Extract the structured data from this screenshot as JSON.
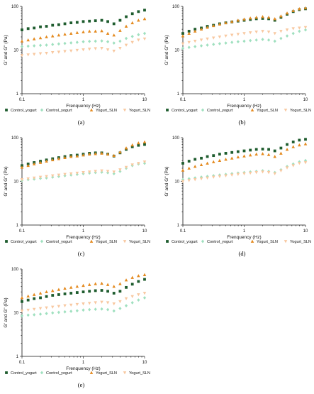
{
  "series_style": [
    {
      "marker": "square",
      "color": "#1e5c2e"
    },
    {
      "marker": "diamond",
      "color": "#9fe0bf"
    },
    {
      "marker": "triangle",
      "color": "#e48a1f"
    },
    {
      "marker": "triangle-down",
      "color": "#f8c8a0"
    }
  ],
  "chart_data": [
    {
      "type": "scatter",
      "panel_label": "(a)",
      "xlabel": "Frenquency (Hz)",
      "ylabel": "G' and G\" (Pa)",
      "xscale": "log",
      "yscale": "log",
      "xlim": [
        0.1,
        10
      ],
      "ylim": [
        1,
        100
      ],
      "xticks": [
        "0.1",
        "1",
        "10"
      ],
      "yticks": [
        "1",
        "10",
        "100"
      ],
      "legend_position": "bottom",
      "grid": false,
      "x": [
        0.1,
        0.126,
        0.158,
        0.2,
        0.251,
        0.316,
        0.398,
        0.501,
        0.631,
        0.794,
        1,
        1.26,
        1.58,
        2,
        2.51,
        3.16,
        3.98,
        5.01,
        6.31,
        7.94,
        10
      ],
      "series": [
        {
          "name": "Control_yogurt",
          "values": [
            29,
            31,
            32,
            34,
            35,
            37,
            38,
            40,
            42,
            43,
            45,
            46,
            47,
            48,
            45,
            40,
            48,
            58,
            68,
            76,
            82
          ]
        },
        {
          "name": "Control_yogurt",
          "values": [
            12,
            12.3,
            12.5,
            12.8,
            13,
            13.4,
            13.8,
            14.2,
            14.6,
            15,
            15.5,
            15.8,
            16,
            16.2,
            15.5,
            14.5,
            16,
            18.5,
            20.5,
            22.5,
            24
          ]
        },
        {
          "name": "Yogurt_SLN",
          "values": [
            16,
            17,
            18,
            19,
            20,
            21,
            22,
            23,
            24,
            25,
            26,
            27,
            27,
            27.5,
            24,
            22,
            28,
            35,
            42,
            48,
            52
          ]
        },
        {
          "name": "Yogurt_SLN",
          "values": [
            7.5,
            7.8,
            8,
            8.3,
            8.5,
            8.8,
            9,
            9.3,
            9.6,
            9.9,
            10.2,
            10.5,
            10.8,
            11,
            10.2,
            9.5,
            11,
            13,
            15,
            17,
            18
          ]
        }
      ]
    },
    {
      "type": "scatter",
      "panel_label": "(b)",
      "xlabel": "Frenquency (Hz)",
      "ylabel": "G' and G\" (Pa)",
      "xscale": "log",
      "yscale": "log",
      "xlim": [
        0.1,
        10
      ],
      "ylim": [
        1,
        100
      ],
      "xticks": [
        "0.1",
        "1",
        "10"
      ],
      "yticks": [
        "1",
        "10",
        "100"
      ],
      "legend_position": "bottom",
      "grid": false,
      "x": [
        0.1,
        0.126,
        0.158,
        0.2,
        0.251,
        0.316,
        0.398,
        0.501,
        0.631,
        0.794,
        1,
        1.26,
        1.58,
        2,
        2.51,
        3.16,
        3.98,
        5.01,
        6.31,
        7.94,
        10
      ],
      "series": [
        {
          "name": "Control_yogurt",
          "values": [
            24,
            27,
            30,
            32,
            35,
            37,
            40,
            42,
            44,
            46,
            48,
            50,
            52,
            53,
            52,
            48,
            56,
            66,
            76,
            84,
            88
          ]
        },
        {
          "name": "Control_yogurt",
          "values": [
            11,
            11.5,
            12,
            12.5,
            13,
            13.5,
            14,
            14.5,
            15,
            15.5,
            16,
            16.5,
            17,
            17.5,
            17,
            16,
            18.5,
            21,
            24,
            27,
            29
          ]
        },
        {
          "name": "Yogurt_SLN",
          "values": [
            21,
            24,
            27,
            30,
            33,
            36,
            39,
            42,
            45,
            48,
            51,
            54,
            56,
            58,
            56,
            52,
            60,
            70,
            80,
            88,
            92
          ]
        },
        {
          "name": "Yogurt_SLN",
          "values": [
            14,
            15,
            16,
            17,
            18,
            19,
            20,
            21,
            22,
            23,
            24,
            25,
            26,
            27,
            26,
            24,
            27,
            29,
            31,
            32,
            33
          ]
        }
      ]
    },
    {
      "type": "scatter",
      "panel_label": "(c)",
      "xlabel": "Frenquency (Hz)",
      "ylabel": "G' and G\" (Pa)",
      "xscale": "log",
      "yscale": "log",
      "xlim": [
        0.1,
        10
      ],
      "ylim": [
        1,
        100
      ],
      "xticks": [
        "0.1",
        "1",
        "10"
      ],
      "yticks": [
        "1",
        "10",
        "100"
      ],
      "legend_position": "bottom",
      "grid": false,
      "x": [
        0.1,
        0.126,
        0.158,
        0.2,
        0.251,
        0.316,
        0.398,
        0.501,
        0.631,
        0.794,
        1,
        1.26,
        1.58,
        2,
        2.51,
        3.16,
        3.98,
        5.01,
        6.31,
        7.94,
        10
      ],
      "series": [
        {
          "name": "Control_yogurt",
          "values": [
            23,
            25,
            27,
            29,
            31,
            33,
            35,
            37,
            39,
            40,
            42,
            44,
            45,
            45,
            42,
            38,
            45,
            54,
            62,
            67,
            70
          ]
        },
        {
          "name": "Control_yogurt",
          "values": [
            10.5,
            11,
            11.3,
            11.7,
            12,
            12.5,
            13,
            13.5,
            14,
            14.5,
            15,
            15.5,
            16,
            16.3,
            15.8,
            15,
            17,
            20,
            23,
            25,
            26
          ]
        },
        {
          "name": "Yogurt_SLN",
          "values": [
            21,
            23,
            25,
            27,
            29,
            31,
            33,
            35,
            37,
            38,
            40,
            42,
            43,
            44,
            42,
            39,
            47,
            58,
            68,
            76,
            80
          ]
        },
        {
          "name": "Yogurt_SLN",
          "values": [
            11,
            11.5,
            12,
            12.5,
            13,
            13.5,
            14,
            14.5,
            15,
            15.5,
            16,
            16.5,
            17,
            17.5,
            17,
            16.5,
            18.5,
            21,
            24,
            26,
            28
          ]
        }
      ]
    },
    {
      "type": "scatter",
      "panel_label": "(d)",
      "xlabel": "Frenquency (Hz)",
      "ylabel": "G' and G\" (Pa)",
      "xscale": "log",
      "yscale": "log",
      "xlim": [
        0.1,
        10
      ],
      "ylim": [
        1,
        100
      ],
      "xticks": [
        "0.1",
        "1",
        "10"
      ],
      "yticks": [
        "1",
        "10",
        "100"
      ],
      "legend_position": "bottom",
      "grid": false,
      "x": [
        0.1,
        0.126,
        0.158,
        0.2,
        0.251,
        0.316,
        0.398,
        0.501,
        0.631,
        0.794,
        1,
        1.26,
        1.58,
        2,
        2.51,
        3.16,
        3.98,
        5.01,
        6.31,
        7.94,
        10
      ],
      "series": [
        {
          "name": "Control_yogurt",
          "values": [
            26,
            29,
            32,
            34,
            37,
            39,
            42,
            44,
            46,
            48,
            50,
            52,
            54,
            55,
            54,
            50,
            58,
            70,
            80,
            88,
            92
          ]
        },
        {
          "name": "Control_yogurt",
          "values": [
            11,
            11.5,
            12,
            12.5,
            13,
            13.5,
            14,
            14.5,
            15,
            15.5,
            16,
            16.5,
            17,
            17.5,
            17,
            16,
            18.5,
            22,
            25,
            28,
            30
          ]
        },
        {
          "name": "Yogurt_SLN",
          "values": [
            18,
            20,
            22,
            24,
            26,
            28,
            30,
            32,
            34,
            36,
            38,
            40,
            42,
            43,
            41,
            37,
            44,
            54,
            62,
            68,
            72
          ]
        },
        {
          "name": "Yogurt_SLN",
          "values": [
            10,
            10.5,
            11,
            11.5,
            12,
            12.5,
            13,
            13.5,
            14,
            14.5,
            15,
            15.5,
            16,
            16.5,
            16,
            15,
            17.5,
            20.5,
            23,
            26,
            27
          ]
        }
      ]
    },
    {
      "type": "scatter",
      "panel_label": "(e)",
      "xlabel": "Frenquency (Hz)",
      "ylabel": "G' and G\" (Pa)",
      "xscale": "log",
      "yscale": "log",
      "xlim": [
        0.1,
        10
      ],
      "ylim": [
        1,
        100
      ],
      "xticks": [
        "0.1",
        "1",
        "10"
      ],
      "yticks": [
        "1",
        "10",
        "100"
      ],
      "legend_position": "bottom",
      "grid": false,
      "x": [
        0.1,
        0.126,
        0.158,
        0.2,
        0.251,
        0.316,
        0.398,
        0.501,
        0.631,
        0.794,
        1,
        1.26,
        1.58,
        2,
        2.51,
        3.16,
        3.98,
        5.01,
        6.31,
        7.94,
        10
      ],
      "series": [
        {
          "name": "Control_yogurt",
          "values": [
            18,
            19.5,
            21,
            22,
            23.5,
            25,
            26,
            27,
            28,
            29,
            30,
            31,
            32,
            32.5,
            31,
            28,
            31,
            38,
            45,
            52,
            58
          ]
        },
        {
          "name": "Control_yogurt",
          "values": [
            8.5,
            8.8,
            9,
            9.3,
            9.6,
            9.9,
            10.2,
            10.5,
            10.8,
            11.1,
            11.5,
            11.8,
            12,
            12.2,
            11.8,
            11,
            12.5,
            14.5,
            17,
            19.5,
            22
          ]
        },
        {
          "name": "Yogurt_SLN",
          "values": [
            22,
            24,
            26,
            28,
            30,
            32,
            34,
            36,
            38,
            40,
            42,
            44,
            46,
            47,
            44,
            40,
            46,
            56,
            64,
            70,
            74
          ]
        },
        {
          "name": "Yogurt_SLN",
          "values": [
            11,
            11.5,
            12,
            12.5,
            13,
            13.5,
            14,
            14.5,
            15,
            15.5,
            16,
            16.5,
            17,
            17.5,
            17,
            16,
            18,
            21,
            23.5,
            26,
            28
          ]
        }
      ]
    }
  ]
}
